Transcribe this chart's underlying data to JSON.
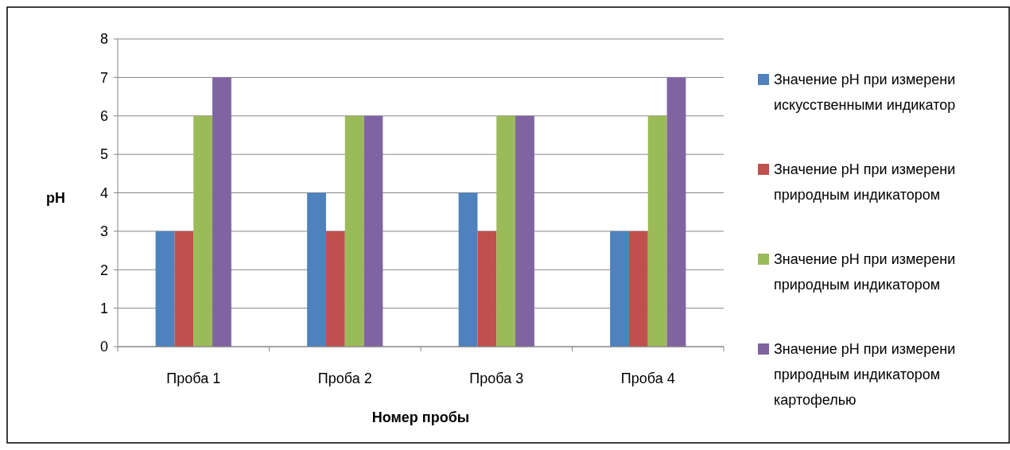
{
  "chart_data": {
    "type": "bar",
    "xlabel": "Номер пробы",
    "ylabel": "pH",
    "categories": [
      "Проба 1",
      "Проба 2",
      "Проба 3",
      "Проба 4"
    ],
    "series": [
      {
        "name": "Значение pH при измерени искусственными индикатор",
        "color": "#4f81bd",
        "values": [
          3,
          4,
          4,
          3
        ]
      },
      {
        "name": "Значение pH при измерени природным индикатором",
        "color": "#c0504d",
        "values": [
          3,
          3,
          3,
          3
        ]
      },
      {
        "name": "Значение pH при измерени природным индикатором",
        "color": "#9bbb59",
        "values": [
          6,
          6,
          6,
          6
        ]
      },
      {
        "name": "Значение pH при измерени природным индикатором картофелью",
        "color": "#8064a2",
        "values": [
          7,
          6,
          6,
          7
        ]
      }
    ],
    "ylim": [
      0,
      8
    ],
    "yticks": [
      0,
      1,
      2,
      3,
      4,
      5,
      6,
      7,
      8
    ],
    "grid": "y",
    "legend": "right"
  }
}
